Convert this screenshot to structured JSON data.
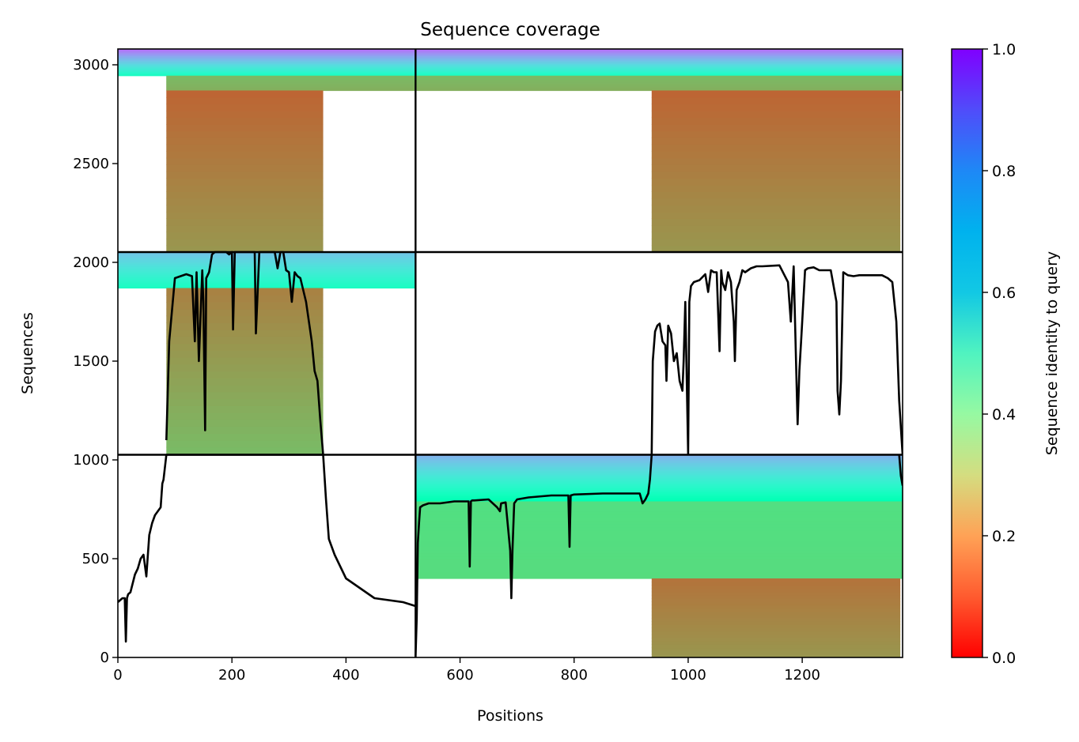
{
  "chart_data": {
    "type": "heatmap",
    "title": "Sequence coverage",
    "xlabel": "Positions",
    "ylabel": "Sequences",
    "xlim": [
      0,
      1376
    ],
    "ylim": [
      0,
      3080
    ],
    "x_ticks": [
      0,
      200,
      400,
      600,
      800,
      1000,
      1200
    ],
    "y_ticks": [
      0,
      500,
      1000,
      1500,
      2000,
      2500,
      3000
    ],
    "colorbar": {
      "label": "Sequence identity to query",
      "range": [
        0.0,
        1.0
      ],
      "ticks": [
        "0.0",
        "0.2",
        "0.4",
        "0.6",
        "0.8",
        "1.0"
      ],
      "colormap": "rainbow"
    },
    "divider_x": 522,
    "divider_y": [
      1026,
      2052
    ],
    "blocks": [
      {
        "name": "block-top-left",
        "x0": 0,
        "x1": 522,
        "y0": 2052,
        "y1": 3080,
        "bands": [
          {
            "y0": 2945,
            "y1": 3080,
            "x0": 0,
            "x1": 522,
            "id_from": 0.55,
            "id_to": 0.85
          },
          {
            "y0": 2870,
            "y1": 2945,
            "x0": 85,
            "x1": 522,
            "id_from": 0.24,
            "id_to": 0.26
          },
          {
            "y0": 2052,
            "y1": 2870,
            "x0": 85,
            "x1": 360,
            "id_from": 0.2,
            "id_to": 0.13
          }
        ]
      },
      {
        "name": "block-top-right",
        "x0": 522,
        "x1": 1376,
        "y0": 2052,
        "y1": 3080,
        "bands": [
          {
            "y0": 2945,
            "y1": 3080,
            "x0": 522,
            "x1": 1376,
            "id_from": 0.55,
            "id_to": 0.85
          },
          {
            "y0": 2870,
            "y1": 2945,
            "x0": 522,
            "x1": 1376,
            "id_from": 0.24,
            "id_to": 0.26
          },
          {
            "y0": 2052,
            "y1": 2870,
            "x0": 936,
            "x1": 1372,
            "id_from": 0.2,
            "id_to": 0.13
          }
        ]
      },
      {
        "name": "block-mid-left",
        "x0": 0,
        "x1": 522,
        "y0": 1026,
        "y1": 2052,
        "bands": [
          {
            "y0": 1870,
            "y1": 2052,
            "x0": 0,
            "x1": 522,
            "id_from": 0.55,
            "id_to": 0.72
          },
          {
            "y0": 1030,
            "y1": 1870,
            "x0": 85,
            "x1": 360,
            "id_from": 0.26,
            "id_to": 0.17
          }
        ]
      },
      {
        "name": "block-bottom-right",
        "x0": 522,
        "x1": 1376,
        "y0": 0,
        "y1": 1026,
        "bands": [
          {
            "y0": 790,
            "y1": 1026,
            "x0": 522,
            "x1": 1376,
            "id_from": 0.5,
            "id_to": 0.75
          },
          {
            "y0": 400,
            "y1": 790,
            "x0": 522,
            "x1": 1376,
            "id_from": 0.33,
            "id_to": 0.34
          },
          {
            "y0": 0,
            "y1": 400,
            "x0": 936,
            "x1": 1372,
            "id_from": 0.2,
            "id_to": 0.15
          }
        ]
      }
    ],
    "coverage_series": [
      {
        "segment": "bottom-left",
        "x": [
          0,
          8,
          12,
          14,
          16,
          18,
          22,
          30,
          35,
          40,
          45,
          50,
          55,
          60,
          65,
          70,
          75,
          78,
          80,
          85,
          100,
          200,
          300,
          330,
          340,
          350,
          360,
          365,
          370,
          380,
          400,
          450,
          500,
          522
        ],
        "y": [
          280,
          300,
          300,
          80,
          300,
          320,
          330,
          420,
          450,
          500,
          520,
          410,
          620,
          680,
          720,
          740,
          760,
          880,
          900,
          1026,
          1026,
          1026,
          1026,
          1026,
          1026,
          1026,
          1026,
          800,
          600,
          520,
          400,
          300,
          280,
          260
        ]
      },
      {
        "segment": "mid-left",
        "x": [
          85,
          90,
          100,
          120,
          130,
          135,
          138,
          142,
          148,
          150,
          153,
          155,
          160,
          165,
          170,
          180,
          190,
          195,
          200,
          202,
          205,
          210,
          220,
          235,
          240,
          242,
          248,
          260,
          275,
          280,
          285,
          290,
          295,
          300,
          305,
          310,
          315,
          320,
          325,
          330,
          335,
          340,
          345,
          350,
          355,
          360
        ],
        "y": [
          1100,
          1600,
          1920,
          1940,
          1930,
          1600,
          1950,
          1500,
          1960,
          1800,
          1150,
          1920,
          1950,
          2040,
          2052,
          2052,
          2052,
          2040,
          2052,
          1660,
          2052,
          2052,
          2052,
          2052,
          2052,
          1640,
          2052,
          2052,
          2052,
          1970,
          2052,
          2052,
          1960,
          1950,
          1800,
          1950,
          1930,
          1920,
          1860,
          1800,
          1700,
          1600,
          1450,
          1400,
          1200,
          1026
        ]
      },
      {
        "segment": "bottom-right",
        "x": [
          522,
          524,
          526,
          528,
          530,
          535,
          545,
          565,
          590,
          600,
          615,
          617,
          619,
          621,
          625,
          650,
          665,
          670,
          672,
          680,
          688,
          690,
          692,
          695,
          700,
          720,
          760,
          790,
          792,
          794,
          800,
          850,
          900,
          915,
          920,
          925,
          930,
          933,
          936
        ],
        "y": [
          0,
          200,
          580,
          680,
          760,
          770,
          780,
          780,
          790,
          790,
          790,
          460,
          790,
          795,
          795,
          800,
          760,
          740,
          780,
          785,
          540,
          300,
          550,
          780,
          800,
          810,
          820,
          820,
          560,
          820,
          825,
          830,
          830,
          830,
          780,
          800,
          830,
          900,
          1026
        ]
      },
      {
        "segment": "mid-right",
        "x": [
          936,
          938,
          942,
          946,
          950,
          955,
          960,
          962,
          965,
          970,
          975,
          980,
          985,
          990,
          992,
          995,
          1000,
          1002,
          1005,
          1010,
          1020,
          1030,
          1035,
          1040,
          1045,
          1050,
          1055,
          1058,
          1060,
          1065,
          1070,
          1075,
          1080,
          1082,
          1085,
          1090,
          1095,
          1100,
          1110,
          1120,
          1130,
          1160,
          1175,
          1180,
          1185,
          1190,
          1192,
          1195,
          1198,
          1200,
          1205,
          1210,
          1220,
          1230,
          1250,
          1260,
          1262,
          1265,
          1268,
          1272,
          1280,
          1290,
          1300,
          1320,
          1340,
          1350,
          1358,
          1365,
          1370,
          1376
        ],
        "y": [
          1026,
          1500,
          1650,
          1680,
          1690,
          1600,
          1580,
          1400,
          1680,
          1640,
          1500,
          1540,
          1400,
          1350,
          1500,
          1800,
          1030,
          1800,
          1880,
          1900,
          1910,
          1940,
          1850,
          1960,
          1950,
          1950,
          1550,
          1960,
          1900,
          1860,
          1950,
          1900,
          1700,
          1500,
          1860,
          1900,
          1960,
          1950,
          1970,
          1980,
          1980,
          1985,
          1900,
          1700,
          1980,
          1400,
          1180,
          1450,
          1600,
          1700,
          1960,
          1970,
          1975,
          1960,
          1960,
          1800,
          1350,
          1230,
          1400,
          1950,
          1935,
          1930,
          1935,
          1935,
          1935,
          1920,
          1900,
          1700,
          1300,
          1026
        ]
      },
      {
        "segment": "bottom-right-end",
        "x": [
          1370,
          1373,
          1376
        ],
        "y": [
          1026,
          920,
          870
        ]
      }
    ]
  }
}
